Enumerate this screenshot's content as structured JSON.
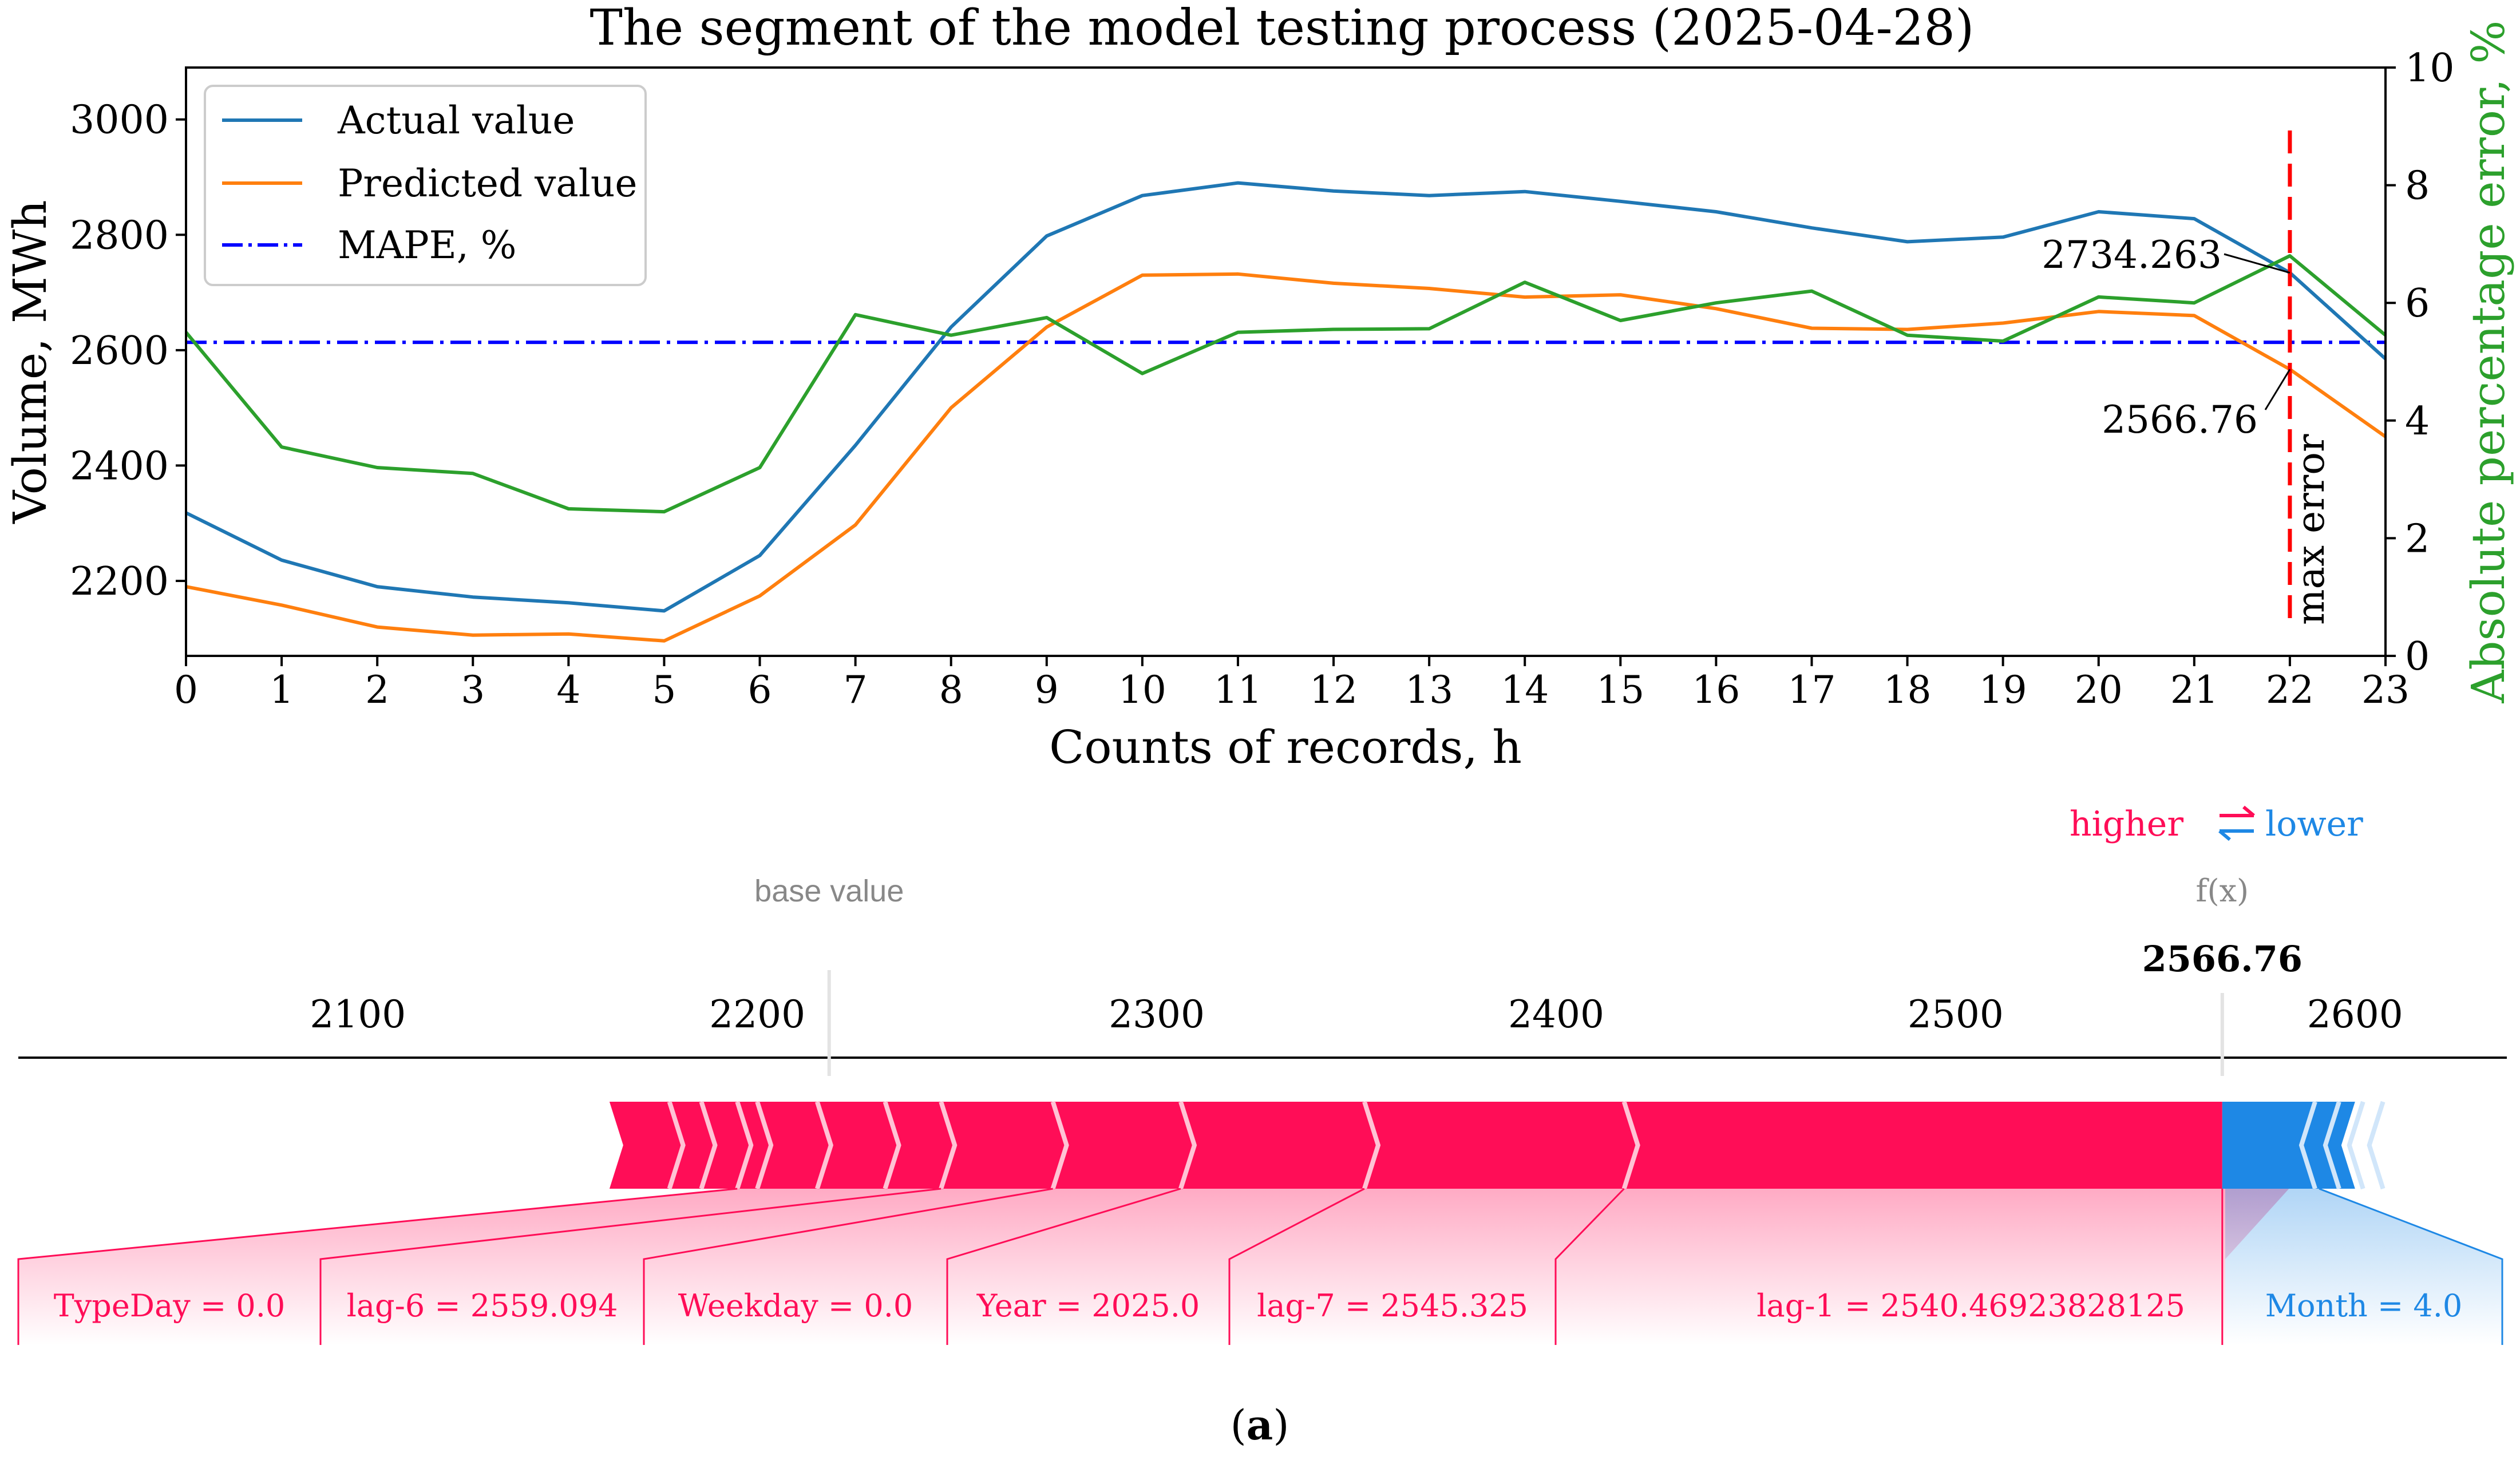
{
  "chart_data": [
    {
      "type": "line",
      "title": "The segment of the model testing process (2025-04-28)",
      "xlabel": "Counts of records, h",
      "ylabel": "Volume, MWh",
      "y2label": "Absolute percentage error, %",
      "x": [
        0,
        1,
        2,
        3,
        4,
        5,
        6,
        7,
        8,
        9,
        10,
        11,
        12,
        13,
        14,
        15,
        16,
        17,
        18,
        19,
        20,
        21,
        22,
        23
      ],
      "xlim": [
        0,
        23
      ],
      "ylim": [
        2070,
        3090
      ],
      "y2lim": [
        0,
        10
      ],
      "y_ticks": [
        2200,
        2400,
        2600,
        2800,
        3000
      ],
      "y2_ticks": [
        0,
        2,
        4,
        6,
        8,
        10
      ],
      "series": [
        {
          "name": "Actual value",
          "axis": "left",
          "color": "#1f77b4",
          "values": [
            2318,
            2236,
            2190,
            2172,
            2162,
            2148,
            2244,
            2435,
            2640,
            2798,
            2868,
            2890,
            2876,
            2868,
            2875,
            2858,
            2840,
            2812,
            2788,
            2796,
            2840,
            2828,
            2734.263,
            2585
          ]
        },
        {
          "name": "Predicted value",
          "axis": "left",
          "color": "#ff7f0e",
          "values": [
            2190,
            2158,
            2120,
            2106,
            2108,
            2096,
            2174,
            2297,
            2500,
            2640,
            2730,
            2732,
            2716,
            2707,
            2692,
            2696,
            2672,
            2638,
            2636,
            2647,
            2667,
            2660,
            2566.76,
            2450
          ]
        },
        {
          "name": "Absolute percentage error",
          "axis": "right",
          "color": "#2ca02c",
          "values": [
            5.5,
            3.55,
            3.2,
            3.1,
            2.5,
            2.45,
            3.2,
            5.8,
            5.45,
            5.75,
            4.8,
            5.5,
            5.55,
            5.56,
            6.35,
            5.7,
            6.0,
            6.2,
            5.45,
            5.35,
            6.1,
            6.0,
            6.8,
            5.45
          ]
        }
      ],
      "mape": {
        "name": "MAPE, %",
        "value": 5.33,
        "color": "#0000ff"
      },
      "max_error": {
        "x": 22,
        "label": "max error",
        "color": "#ff0000",
        "actual_label": "2734.263",
        "predicted_label": "2566.76"
      },
      "legend": {
        "position": "top-left",
        "entries": [
          "Actual value",
          "Predicted value",
          "MAPE, %"
        ]
      }
    },
    {
      "type": "force",
      "higher_label": "higher",
      "lower_label": "lower",
      "arrows_symbol": "⇄",
      "base_value_label": "base value",
      "base_value": 2218,
      "fx_label": "f(x)",
      "fx_value": 2566.76,
      "fx_value_label": "2566.76",
      "xlim": [
        2015,
        2638
      ],
      "ticks": [
        2100,
        2200,
        2300,
        2400,
        2500,
        2600
      ],
      "positive_color": "#ff0d57",
      "negative_color": "#1e88e5",
      "positive_segments": [
        {
          "from": 2195,
          "to": 2246,
          "label": "TypeDay = 0.0"
        },
        {
          "from": 2246,
          "to": 2274,
          "label": "lag-6 = 2559.094"
        },
        {
          "from": 2274,
          "to": 2306,
          "label": "Weekday = 0.0"
        },
        {
          "from": 2306,
          "to": 2352,
          "label": "Year = 2025.0"
        },
        {
          "from": 2352,
          "to": 2417,
          "label": "lag-7 = 2545.325"
        },
        {
          "from": 2417,
          "to": 2583.45,
          "label": "lag-1 = 2540.46923828125"
        }
      ],
      "negative_segments": [
        {
          "from": 2591,
          "to": 2583.45,
          "label": "Month = 4.0"
        }
      ],
      "small_positive_from": 2163,
      "small_negative_to": 2600
    }
  ],
  "caption": {
    "open": "(",
    "letter": "a",
    "close": ")"
  }
}
